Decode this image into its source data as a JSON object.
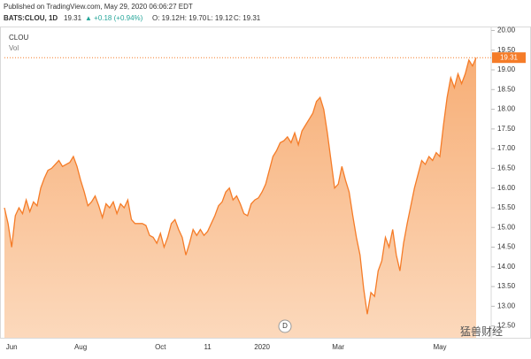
{
  "header": {
    "published": "Published on TradingView.com, May 29, 2020 06:06:27 EDT",
    "symbol": "BATS:CLOU, 1D",
    "last": "19.31",
    "change": "▲ +0.18 (+0.94%)",
    "open": "O: 19.12",
    "high": "H: 19.70",
    "low": "L: 19.12",
    "close": "C: 19.31"
  },
  "watermark": "猛兽财经",
  "marker": "D",
  "chart_data": {
    "type": "area",
    "title": "CLOU",
    "volume_label": "Vol",
    "color": "#f57c28",
    "categories": [
      null,
      null,
      "Jun",
      null,
      null,
      null,
      null,
      null,
      null,
      null,
      null,
      null,
      null,
      null,
      null,
      null,
      null,
      null,
      null,
      null,
      null,
      "Aug",
      null,
      null,
      null,
      null,
      null,
      null,
      null,
      null,
      null,
      null,
      null,
      null,
      null,
      null,
      null,
      null,
      null,
      null,
      null,
      null,
      null,
      "Oct",
      null,
      null,
      null,
      null,
      null,
      null,
      null,
      null,
      null,
      null,
      null,
      null,
      "11",
      null,
      null,
      null,
      null,
      null,
      null,
      null,
      null,
      null,
      null,
      null,
      null,
      null,
      null,
      "2020",
      null,
      null,
      null,
      null,
      null,
      null,
      null,
      null,
      null,
      null,
      null,
      null,
      null,
      null,
      null,
      null,
      null,
      null,
      null,
      null,
      "Mar",
      null,
      null,
      null,
      null,
      null,
      null,
      null,
      null,
      null,
      null,
      null,
      null,
      null,
      null,
      null,
      null,
      null,
      null,
      null,
      null,
      null,
      null,
      null,
      null,
      null,
      null,
      null,
      "May",
      null,
      null,
      null,
      null,
      null,
      null,
      null,
      null,
      null,
      null
    ],
    "values": [
      15.5,
      15.1,
      14.5,
      15.3,
      15.5,
      15.35,
      15.7,
      15.4,
      15.65,
      15.55,
      16.0,
      16.25,
      16.45,
      16.5,
      16.6,
      16.7,
      16.55,
      16.6,
      16.65,
      16.8,
      16.55,
      16.2,
      15.9,
      15.55,
      15.65,
      15.8,
      15.55,
      15.25,
      15.6,
      15.5,
      15.65,
      15.35,
      15.6,
      15.5,
      15.7,
      15.2,
      15.1,
      15.1,
      15.1,
      15.05,
      14.8,
      14.75,
      14.6,
      14.85,
      14.5,
      14.75,
      15.1,
      15.2,
      14.95,
      14.75,
      14.3,
      14.6,
      14.95,
      14.8,
      14.95,
      14.8,
      14.9,
      15.1,
      15.3,
      15.55,
      15.65,
      15.9,
      16.0,
      15.7,
      15.8,
      15.6,
      15.35,
      15.3,
      15.6,
      15.7,
      15.75,
      15.9,
      16.1,
      16.45,
      16.8,
      16.95,
      17.15,
      17.2,
      17.3,
      17.15,
      17.4,
      17.1,
      17.45,
      17.6,
      17.75,
      17.9,
      18.2,
      18.3,
      18.0,
      17.4,
      16.7,
      16.0,
      16.1,
      16.55,
      16.2,
      15.9,
      15.3,
      14.75,
      14.3,
      13.45,
      12.8,
      13.35,
      13.25,
      13.9,
      14.15,
      14.75,
      14.5,
      14.95,
      14.3,
      13.9,
      14.6,
      15.1,
      15.55,
      16.0,
      16.35,
      16.7,
      16.6,
      16.8,
      16.7,
      16.9,
      16.8,
      17.6,
      18.3,
      18.8,
      18.55,
      18.9,
      18.65,
      18.9,
      19.25,
      19.1,
      19.31
    ],
    "ylim": [
      12.2,
      20.1
    ],
    "yticks": [
      {
        "value": 12.5,
        "label": "12.50"
      },
      {
        "value": 13,
        "label": "13.00"
      },
      {
        "value": 13.5,
        "label": "13.50"
      },
      {
        "value": 14,
        "label": "14.00"
      },
      {
        "value": 14.5,
        "label": "14.50"
      },
      {
        "value": 15,
        "label": "15.00"
      },
      {
        "value": 15.5,
        "label": "15.50"
      },
      {
        "value": 16,
        "label": "16.00"
      },
      {
        "value": 16.5,
        "label": "16.50"
      },
      {
        "value": 17,
        "label": "17.00"
      },
      {
        "value": 17.5,
        "label": "17.50"
      },
      {
        "value": 18,
        "label": "18.00"
      },
      {
        "value": 18.5,
        "label": "18.50"
      },
      {
        "value": 19,
        "label": "19.00"
      },
      {
        "value": 19.5,
        "label": "19.50"
      },
      {
        "value": 20,
        "label": "20.00"
      }
    ]
  }
}
